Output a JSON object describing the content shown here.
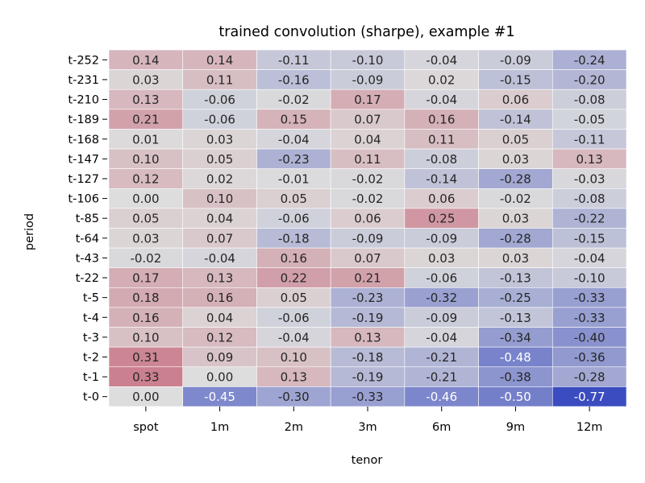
{
  "chart_data": {
    "type": "heatmap",
    "title": "trained convolution (sharpe), example #1",
    "xlabel": "tenor",
    "ylabel": "period",
    "x_categories": [
      "spot",
      "1m",
      "2m",
      "3m",
      "6m",
      "9m",
      "12m"
    ],
    "y_categories": [
      "t-252",
      "t-231",
      "t-210",
      "t-189",
      "t-168",
      "t-147",
      "t-127",
      "t-106",
      "t-85",
      "t-64",
      "t-43",
      "t-22",
      "t-5",
      "t-4",
      "t-3",
      "t-2",
      "t-1",
      "t-0"
    ],
    "values": [
      [
        "0.14",
        "0.14",
        "-0.11",
        "-0.10",
        "-0.04",
        "-0.09",
        "-0.24"
      ],
      [
        "0.03",
        "0.11",
        "-0.16",
        "-0.09",
        "0.02",
        "-0.15",
        "-0.20"
      ],
      [
        "0.13",
        "-0.06",
        "-0.02",
        "0.17",
        "-0.04",
        "0.06",
        "-0.08"
      ],
      [
        "0.21",
        "-0.06",
        "0.15",
        "0.07",
        "0.16",
        "-0.14",
        "-0.05"
      ],
      [
        "0.01",
        "0.03",
        "-0.04",
        "0.04",
        "0.11",
        "0.05",
        "-0.11"
      ],
      [
        "0.10",
        "0.05",
        "-0.23",
        "0.11",
        "-0.08",
        "0.03",
        "0.13"
      ],
      [
        "0.12",
        "0.02",
        "-0.01",
        "-0.02",
        "-0.14",
        "-0.28",
        "-0.03"
      ],
      [
        "0.00",
        "0.10",
        "0.05",
        "-0.02",
        "0.06",
        "-0.02",
        "-0.08"
      ],
      [
        "0.05",
        "0.04",
        "-0.06",
        "0.06",
        "0.25",
        "0.03",
        "-0.22"
      ],
      [
        "0.03",
        "0.07",
        "-0.18",
        "-0.09",
        "-0.09",
        "-0.28",
        "-0.15"
      ],
      [
        "-0.02",
        "-0.04",
        "0.16",
        "0.07",
        "0.03",
        "0.03",
        "-0.04"
      ],
      [
        "0.17",
        "0.13",
        "0.22",
        "0.21",
        "-0.06",
        "-0.13",
        "-0.10"
      ],
      [
        "0.18",
        "0.16",
        "0.05",
        "-0.23",
        "-0.32",
        "-0.25",
        "-0.33"
      ],
      [
        "0.16",
        "0.04",
        "-0.06",
        "-0.19",
        "-0.09",
        "-0.13",
        "-0.33"
      ],
      [
        "0.10",
        "0.12",
        "-0.04",
        "0.13",
        "-0.04",
        "-0.34",
        "-0.40"
      ],
      [
        "0.31",
        "0.09",
        "0.10",
        "-0.18",
        "-0.21",
        "-0.48",
        "-0.36"
      ],
      [
        "0.33",
        "0.00",
        "0.13",
        "-0.19",
        "-0.21",
        "-0.38",
        "-0.28"
      ],
      [
        "0.00",
        "-0.45",
        "-0.30",
        "-0.33",
        "-0.46",
        "-0.50",
        "-0.77"
      ]
    ],
    "vmin": -0.77,
    "vmax": 0.77,
    "colormap": "coolwarm",
    "colors": {
      "negative_extreme": "#3b4cc0",
      "center": "#dddddd",
      "positive_extreme": "#b40426",
      "text_dark": "#262626",
      "text_light": "#ffffff",
      "cell_border": "#ffffff"
    },
    "colorbar": false,
    "grid": false
  }
}
